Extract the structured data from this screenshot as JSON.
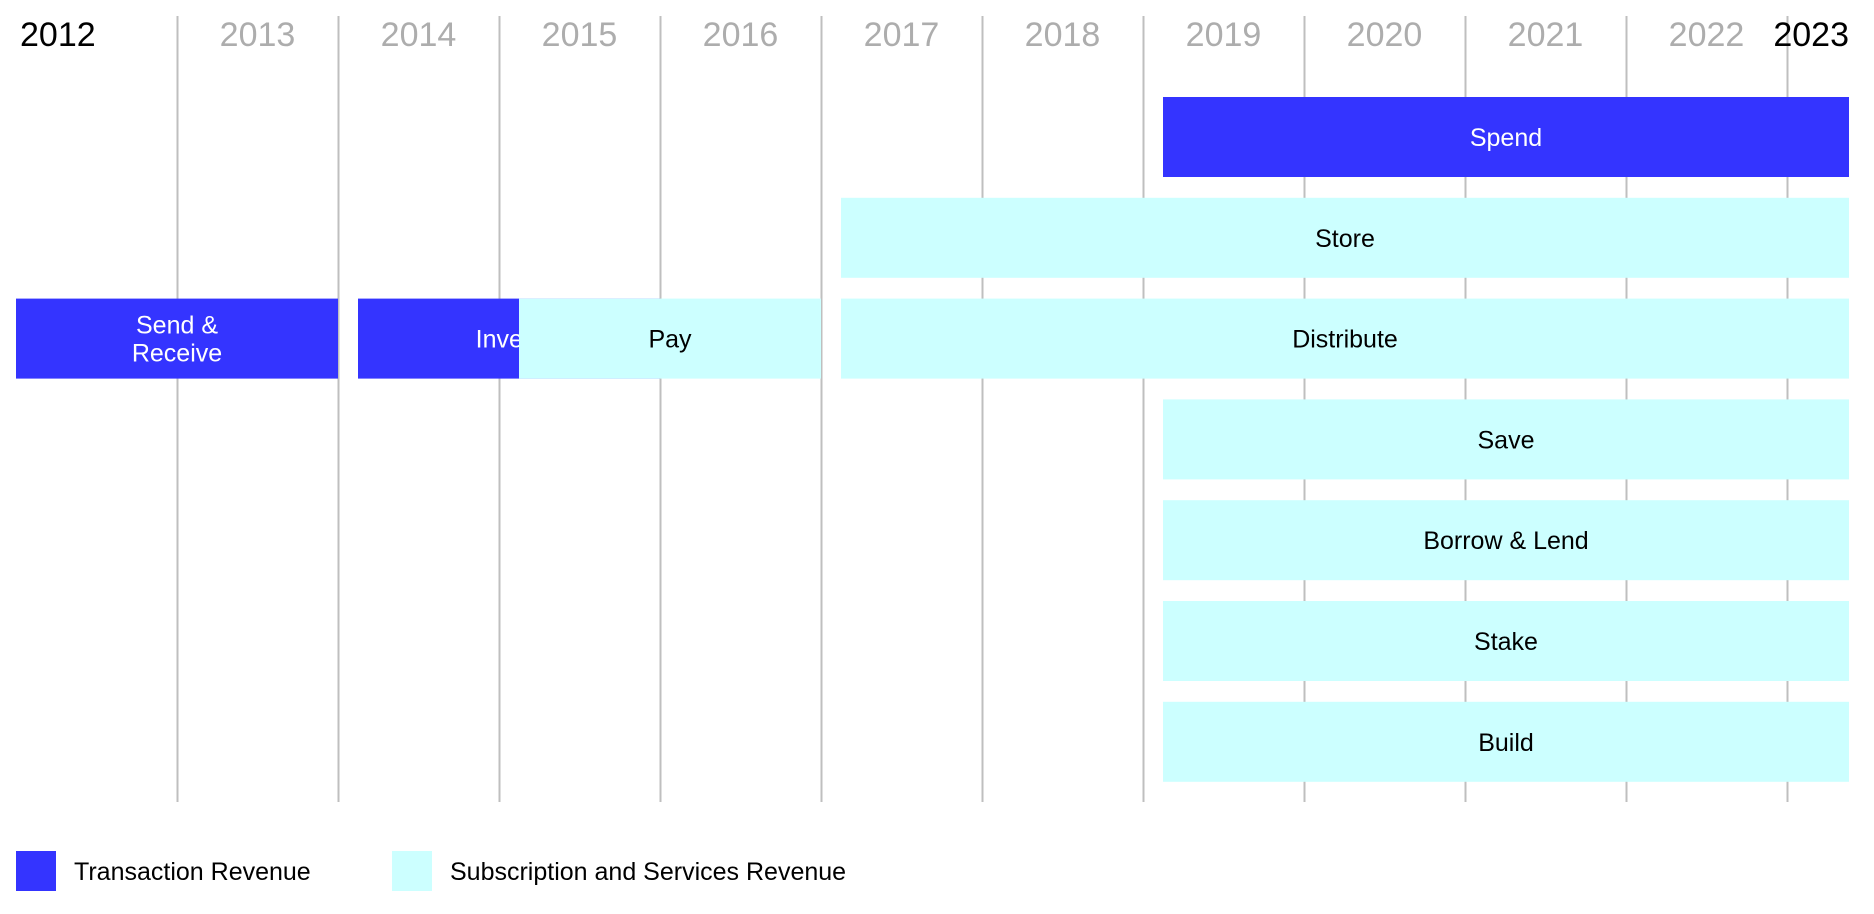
{
  "chart_data": {
    "type": "bar",
    "subtype": "timeline",
    "years": [
      "2012",
      "2013",
      "2014",
      "2015",
      "2016",
      "2017",
      "2018",
      "2019",
      "2020",
      "2021",
      "2022",
      "2023"
    ],
    "highlighted_years": [
      "2012",
      "2023"
    ],
    "x_range": [
      2012,
      2023
    ],
    "grid": true,
    "categories": [
      {
        "key": "transaction",
        "label": "Transaction Revenue",
        "color": "#3434FF"
      },
      {
        "key": "subscription",
        "label": "Subscription and Services Revenue",
        "color": "#CCFFFF"
      }
    ],
    "bars": [
      {
        "label": "Spend",
        "category": "transaction",
        "start": 2019,
        "end": 2023,
        "row": 0
      },
      {
        "label": "Store",
        "category": "subscription",
        "start": 2017,
        "end": 2023,
        "row": 1
      },
      {
        "label": "Send &\nReceive",
        "category": "transaction",
        "start": 2012,
        "end": 2013,
        "row": 2
      },
      {
        "label": "Invest",
        "category": "transaction",
        "start": 2014,
        "end": 2015,
        "row": 2
      },
      {
        "label": "Pay",
        "category": "subscription",
        "start": 2015,
        "end": 2016,
        "row": 2
      },
      {
        "label": "Distribute",
        "category": "subscription",
        "start": 2017,
        "end": 2023,
        "row": 2
      },
      {
        "label": "Save",
        "category": "subscription",
        "start": 2019,
        "end": 2023,
        "row": 3
      },
      {
        "label": "Borrow & Lend",
        "category": "subscription",
        "start": 2019,
        "end": 2023,
        "row": 4
      },
      {
        "label": "Stake",
        "category": "subscription",
        "start": 2019,
        "end": 2023,
        "row": 5
      },
      {
        "label": "Build",
        "category": "subscription",
        "start": 2019,
        "end": 2023,
        "row": 6
      }
    ],
    "legend_position": "bottom-left",
    "colors": {
      "year_default": "#ADADAD",
      "year_highlight": "#000000",
      "gridline": "#BFBFBF",
      "transaction_text": "#FFFFFF",
      "subscription_text": "#000000"
    }
  }
}
